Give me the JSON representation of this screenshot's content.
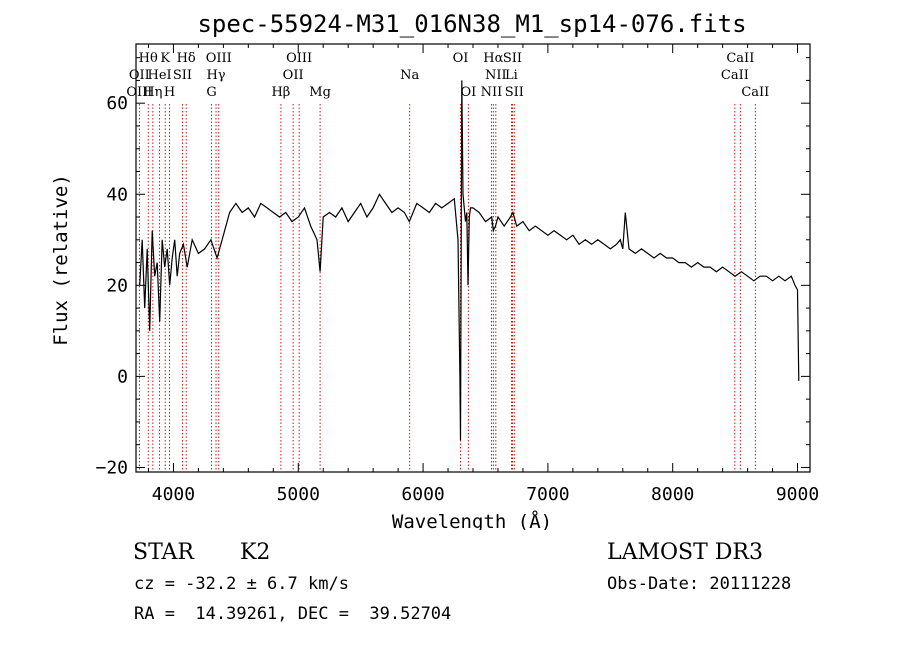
{
  "chart_data": {
    "type": "line",
    "title": "spec-55924-M31_016N38_M1_sp14-076.fits",
    "xlabel": "Wavelength (Å)",
    "ylabel": "Flux (relative)",
    "xlim": [
      3700,
      9100
    ],
    "ylim": [
      -21,
      73
    ],
    "xticks": [
      4000,
      5000,
      6000,
      7000,
      8000,
      9000
    ],
    "yticks": [
      -20,
      0,
      20,
      40,
      60
    ],
    "series": [
      {
        "name": "flux",
        "x": [
          3730,
          3750,
          3770,
          3790,
          3810,
          3830,
          3850,
          3870,
          3890,
          3910,
          3930,
          3950,
          3970,
          3990,
          4010,
          4030,
          4050,
          4080,
          4110,
          4150,
          4200,
          4250,
          4300,
          4350,
          4400,
          4450,
          4500,
          4550,
          4600,
          4650,
          4700,
          4750,
          4800,
          4850,
          4900,
          4950,
          5000,
          5050,
          5100,
          5150,
          5175,
          5200,
          5250,
          5300,
          5350,
          5400,
          5450,
          5500,
          5550,
          5600,
          5650,
          5700,
          5750,
          5800,
          5850,
          5890,
          5950,
          6000,
          6050,
          6100,
          6150,
          6200,
          6250,
          6280,
          6295,
          6300,
          6310,
          6320,
          6340,
          6350,
          6360,
          6370,
          6380,
          6400,
          6450,
          6500,
          6550,
          6563,
          6580,
          6600,
          6650,
          6700,
          6720,
          6750,
          6800,
          6850,
          6900,
          6950,
          7000,
          7050,
          7100,
          7150,
          7200,
          7250,
          7300,
          7350,
          7400,
          7450,
          7500,
          7550,
          7580,
          7600,
          7620,
          7650,
          7700,
          7750,
          7800,
          7850,
          7900,
          7950,
          8000,
          8050,
          8100,
          8150,
          8200,
          8250,
          8300,
          8350,
          8400,
          8450,
          8500,
          8550,
          8600,
          8650,
          8700,
          8750,
          8800,
          8850,
          8900,
          8950,
          8980,
          9000,
          9010
        ],
        "y": [
          20,
          30,
          15,
          28,
          10,
          32,
          22,
          25,
          12,
          30,
          24,
          28,
          20,
          26,
          30,
          22,
          27,
          29,
          24,
          30,
          27,
          28,
          30,
          26,
          31,
          36,
          38,
          36,
          37,
          35,
          38,
          37,
          36,
          35,
          36,
          34,
          35,
          37,
          33,
          30,
          23,
          35,
          36,
          35,
          37,
          34,
          36,
          38,
          35,
          37,
          40,
          38,
          36,
          37,
          36,
          34,
          38,
          37,
          36,
          38,
          37,
          38,
          39,
          30,
          0,
          -14,
          65,
          40,
          34,
          36,
          20,
          35,
          37,
          37,
          36,
          34,
          35,
          32,
          33,
          35,
          33,
          35,
          36,
          33,
          34,
          32,
          33,
          32,
          31,
          32,
          31,
          30,
          31,
          29,
          30,
          29,
          30,
          29,
          28,
          29,
          30,
          28,
          36,
          28,
          27,
          28,
          27,
          26,
          27,
          26,
          26,
          25,
          25,
          24,
          25,
          24,
          24,
          23,
          24,
          23,
          22,
          23,
          22,
          21,
          22,
          22,
          21,
          22,
          21,
          22,
          20,
          19,
          -1
        ]
      }
    ],
    "line_ids": [
      {
        "label": "Hθ",
        "wave": 3798,
        "row": 1
      },
      {
        "label": "OII",
        "wave": 3727,
        "row": 2
      },
      {
        "label": "OIII",
        "wave": 3727,
        "row": 3
      },
      {
        "label": "K",
        "wave": 3934,
        "row": 1
      },
      {
        "label": "HeI",
        "wave": 3889,
        "row": 2
      },
      {
        "label": "Hη",
        "wave": 3835,
        "row": 3
      },
      {
        "label": "Hδ",
        "wave": 4102,
        "row": 1
      },
      {
        "label": "SII",
        "wave": 4072,
        "row": 2
      },
      {
        "label": "H",
        "wave": 3969,
        "row": 3
      },
      {
        "label": "OIII",
        "wave": 4363,
        "row": 1
      },
      {
        "label": "Hγ",
        "wave": 4341,
        "row": 2
      },
      {
        "label": "G",
        "wave": 4305,
        "row": 3
      },
      {
        "label": "OIII",
        "wave": 5007,
        "row": 1
      },
      {
        "label": "OII",
        "wave": 4959,
        "row": 2
      },
      {
        "label": "Hβ",
        "wave": 4861,
        "row": 3
      },
      {
        "label": "Mg",
        "wave": 5175,
        "row": 3
      },
      {
        "label": "Na",
        "wave": 5893,
        "row": 2
      },
      {
        "label": "OI",
        "wave": 6300,
        "row": 1
      },
      {
        "label": "OI",
        "wave": 6363,
        "row": 3
      },
      {
        "label": "Hα",
        "wave": 6563,
        "row": 1
      },
      {
        "label": "NII",
        "wave": 6583,
        "row": 2
      },
      {
        "label": "NII",
        "wave": 6548,
        "row": 3
      },
      {
        "label": "SII",
        "wave": 6716,
        "row": 1
      },
      {
        "label": "Li",
        "wave": 6708,
        "row": 2
      },
      {
        "label": "SII",
        "wave": 6731,
        "row": 3
      },
      {
        "label": "CaII",
        "wave": 8542,
        "row": 1
      },
      {
        "label": "CaII",
        "wave": 8498,
        "row": 2
      },
      {
        "label": "CaII",
        "wave": 8662,
        "row": 3
      }
    ]
  },
  "info": {
    "class": "STAR",
    "subclass": "K2",
    "survey": "LAMOST DR3",
    "cz": "cz = -32.2 ± 6.7 km/s",
    "obs_date": "Obs-Date: 20111228",
    "radec": "RA =  14.39261, DEC =  39.52704"
  },
  "colors": {
    "line_marker": "#cc0000",
    "spectrum": "#000000"
  }
}
